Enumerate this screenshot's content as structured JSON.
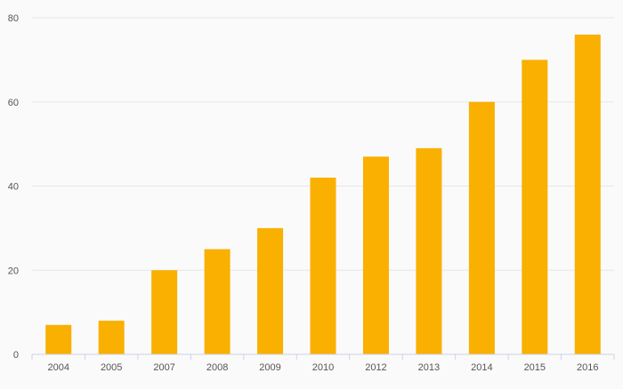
{
  "chart_data": {
    "type": "bar",
    "title": "",
    "xlabel": "",
    "ylabel": "",
    "categories": [
      "2004",
      "2005",
      "2007",
      "2008",
      "2009",
      "2010",
      "2012",
      "2013",
      "2014",
      "2015",
      "2016"
    ],
    "values": [
      7,
      8,
      20,
      25,
      30,
      42,
      47,
      49,
      60,
      70,
      76
    ],
    "ylim": [
      0,
      80
    ],
    "yticks": [
      0,
      20,
      40,
      60,
      80
    ],
    "grid": true,
    "legend": "none",
    "colors": {
      "bar": "#f9b000",
      "grid": "#e6e6e6",
      "axis": "#cfd3e6",
      "label": "#555555",
      "background": "#fafafa"
    }
  }
}
